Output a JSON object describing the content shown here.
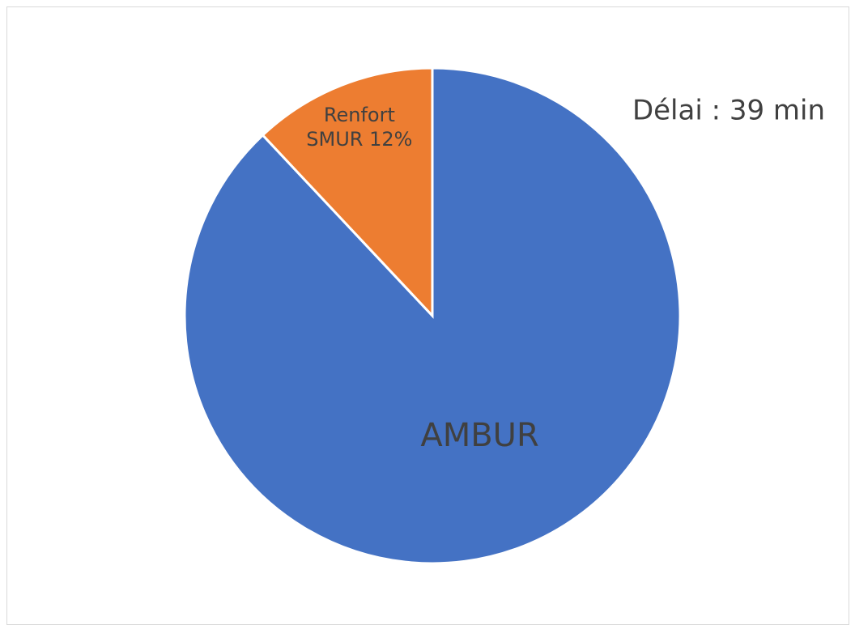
{
  "chart_data": {
    "type": "pie",
    "categories": [
      "AMBUR",
      "Renfort SMUR"
    ],
    "values": [
      88,
      12
    ],
    "value_labels": [
      null,
      "12%"
    ],
    "colors": [
      "#4472c4",
      "#ed7d31"
    ],
    "annotations": [
      "Délai : 39 min"
    ]
  }
}
